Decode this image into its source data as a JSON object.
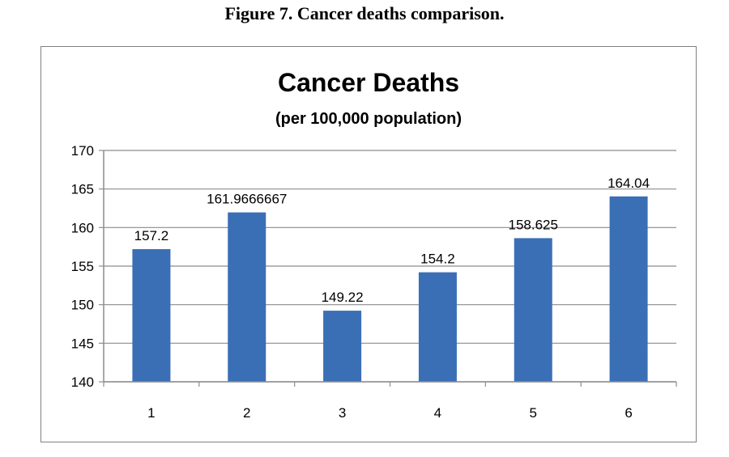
{
  "figure_caption": "Figure 7.  Cancer deaths comparison.",
  "chart_data": {
    "type": "bar",
    "title": "Cancer Deaths",
    "subtitle": "(per 100,000 population)",
    "xlabel": "",
    "ylabel": "",
    "categories": [
      "1",
      "2",
      "3",
      "4",
      "5",
      "6"
    ],
    "values": [
      157.2,
      161.9666667,
      149.22,
      154.2,
      158.625,
      164.04
    ],
    "data_labels": [
      "157.2",
      "161.9666667",
      "149.22",
      "154.2",
      "158.625",
      "164.04"
    ],
    "ylim": [
      140,
      170
    ],
    "yticks": [
      140,
      145,
      150,
      155,
      160,
      165,
      170
    ],
    "grid": true,
    "legend": "none",
    "bar_color": "#3a6fb5"
  }
}
